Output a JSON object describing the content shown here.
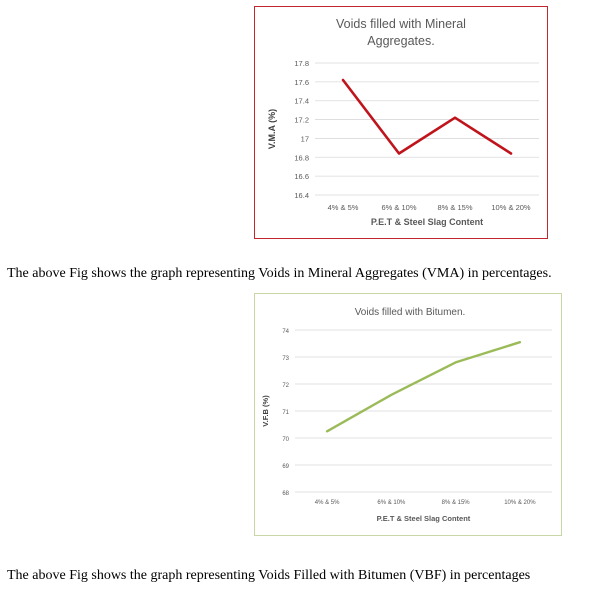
{
  "chart_data": [
    {
      "type": "line",
      "title_lines": [
        "Voids filled with Mineral",
        "Aggregates."
      ],
      "xlabel": "P.E.T & Steel Slag Content",
      "ylabel": "V.M.A (%)",
      "categories": [
        "4% & 5%",
        "6% & 10%",
        "8% & 15%",
        "10% & 20%"
      ],
      "series": [
        {
          "values": [
            17.62,
            16.84,
            17.22,
            16.84
          ]
        }
      ],
      "ylim": [
        16.4,
        17.8
      ],
      "yticks": [
        16.4,
        16.6,
        16.8,
        17,
        17.2,
        17.4,
        17.6,
        17.8
      ],
      "ytick_labels": [
        "16.4",
        "16.6",
        "16.8",
        "17",
        "17.2",
        "17.4",
        "17.6",
        "17.8"
      ],
      "grid": true,
      "line_color": "#c0141c",
      "border_color": "#c0282d"
    },
    {
      "type": "line",
      "title_lines": [
        "Voids filled with Bitumen."
      ],
      "xlabel": "P.E.T & Steel Slag Content",
      "ylabel": "V.F.B (%)",
      "categories": [
        "4% & 5%",
        "6% & 10%",
        "8% & 15%",
        "10% & 20%"
      ],
      "series": [
        {
          "values": [
            70.25,
            71.6,
            72.8,
            73.55
          ]
        }
      ],
      "ylim": [
        68,
        74
      ],
      "yticks": [
        68,
        69,
        70,
        71,
        72,
        73,
        74
      ],
      "ytick_labels": [
        "68",
        "69",
        "70",
        "71",
        "72",
        "73",
        "74"
      ],
      "grid": true,
      "line_color": "#9bbb59",
      "border_color": "#c9d6a6"
    }
  ],
  "captions": {
    "vma": "The above Fig shows the graph representing Voids in Mineral Aggregates (VMA) in percentages.",
    "vbf": "The above Fig shows the graph representing Voids Filled with Bitumen (VBF) in percentages"
  }
}
